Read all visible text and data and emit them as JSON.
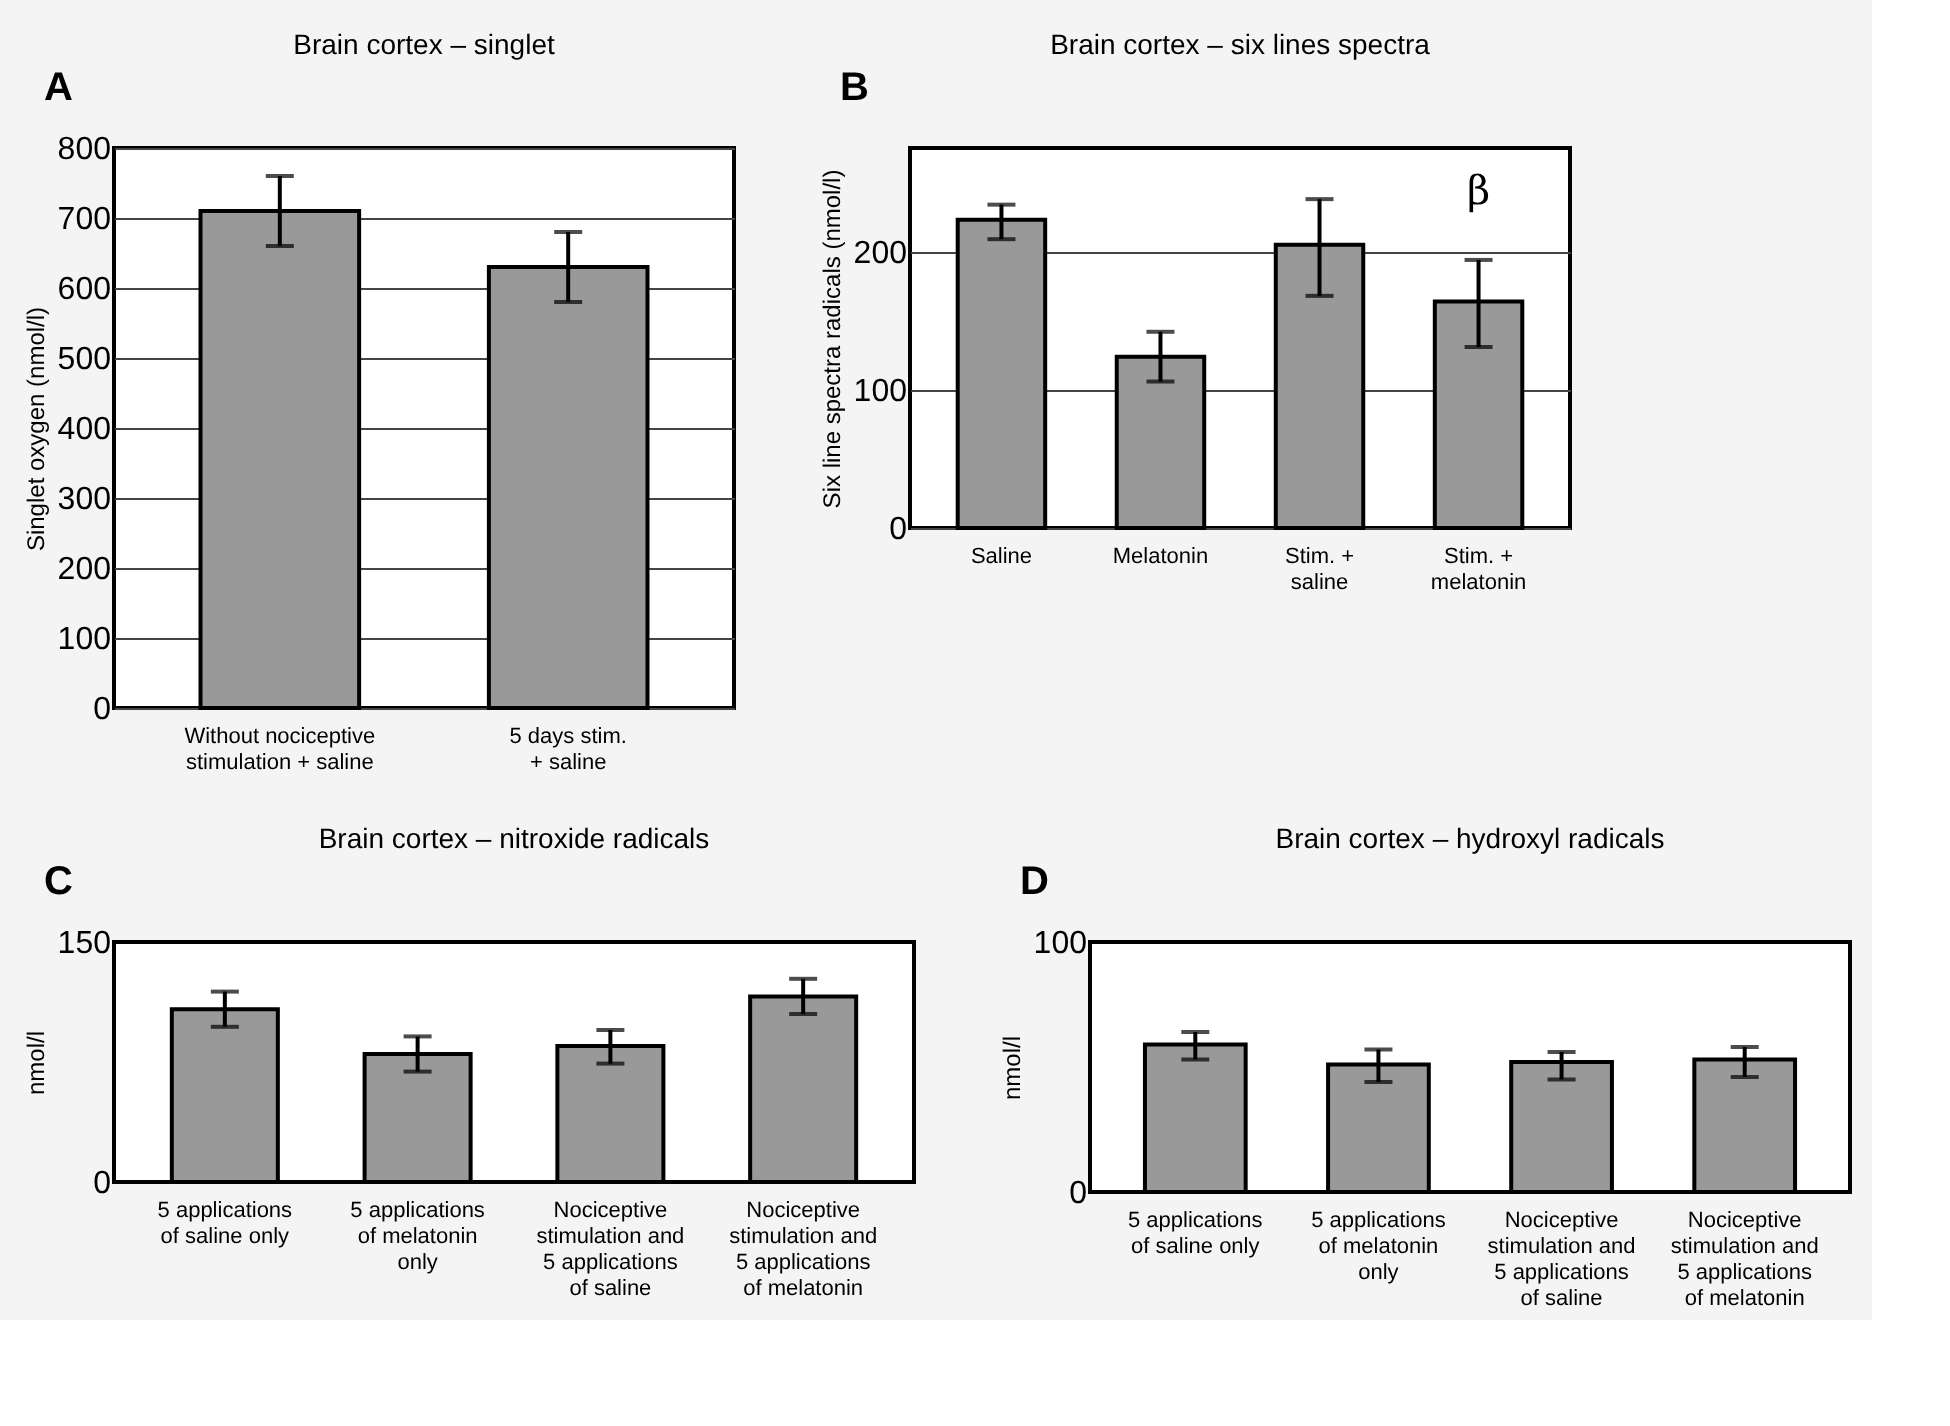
{
  "chart_data": [
    {
      "type": "bar",
      "title": "Brain cortex – singlet",
      "ylabel": "Singlet oxygen (nmol/l)",
      "annotations": [
        "A"
      ],
      "categories": [
        "Without nociceptive\nstimulation + saline",
        "5 days stim.\n+ saline"
      ],
      "values": [
        710,
        630
      ],
      "errors": [
        [
          660,
          760
        ],
        [
          580,
          680
        ]
      ],
      "color": "#999999",
      "ylim": [
        0,
        800
      ],
      "yticks": [
        0,
        100,
        200,
        300,
        400,
        500,
        600,
        700,
        800
      ],
      "grid": "y"
    },
    {
      "type": "bar",
      "title": "Brain cortex – six lines spectra",
      "ylabel": "Six line spectra radicals (nmol/l)",
      "annotations": [
        "B",
        "β"
      ],
      "categories": [
        "Saline",
        "Melatonin",
        "Stim. +\nsaline",
        "Stim. +\nmelatonin"
      ],
      "values": [
        223,
        124,
        205,
        164
      ],
      "errors": [
        [
          209,
          234
        ],
        [
          106,
          142
        ],
        [
          168,
          238
        ],
        [
          131,
          194
        ]
      ],
      "color": "#999999",
      "ylim": [
        0,
        275
      ],
      "yticks": [
        0,
        100,
        200
      ],
      "grid": "y"
    },
    {
      "type": "bar",
      "title": "Brain cortex – nitroxide radicals",
      "ylabel": "nmol/l",
      "annotations": [
        "C"
      ],
      "categories": [
        "5 applications\nof saline only",
        "5 applications\nof melatonin\nonly",
        "Nociceptive\nstimulation and\n5 applications\nof saline",
        "Nociceptive\nstimulation and\n5 applications\nof melatonin"
      ],
      "values": [
        108,
        80,
        85,
        116
      ],
      "errors": [
        [
          97,
          119
        ],
        [
          69,
          91
        ],
        [
          74,
          95
        ],
        [
          105,
          127
        ]
      ],
      "color": "#999999",
      "ylim": [
        0,
        150
      ],
      "yticks": [
        0,
        150
      ],
      "grid": false
    },
    {
      "type": "bar",
      "title": "Brain cortex – hydroxyl radicals",
      "ylabel": "nmol/l",
      "annotations": [
        "D"
      ],
      "categories": [
        "5 applications\nof saline only",
        "5 applications\nof melatonin\nonly",
        "Nociceptive\nstimulation and\n5 applications\nof saline",
        "Nociceptive\nstimulation and\n5 applications\nof melatonin"
      ],
      "values": [
        59,
        51,
        52,
        53
      ],
      "errors": [
        [
          53,
          64
        ],
        [
          44,
          57
        ],
        [
          45,
          56
        ],
        [
          46,
          58
        ]
      ],
      "color": "#999999",
      "ylim": [
        0,
        100
      ],
      "yticks": [
        0,
        100
      ],
      "grid": false
    }
  ]
}
